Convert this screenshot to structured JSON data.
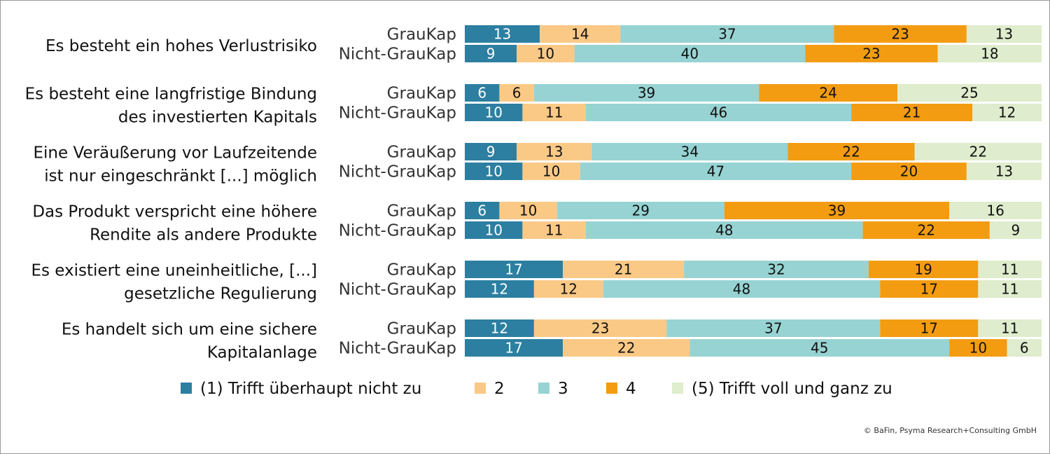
{
  "chart_data": {
    "type": "bar",
    "orientation": "horizontal",
    "stacked": true,
    "normalized_percent": true,
    "groups": [
      "GrauKap",
      "Nicht-GrauKap"
    ],
    "categories": [
      {
        "label_lines": [
          "Es besteht ein hohes Verlustrisiko"
        ],
        "rows": [
          {
            "group": "GrauKap",
            "values": [
              13,
              14,
              37,
              23,
              13
            ]
          },
          {
            "group": "Nicht-GrauKap",
            "values": [
              9,
              10,
              40,
              23,
              18
            ]
          }
        ]
      },
      {
        "label_lines": [
          "Es besteht eine langfristige Bindung",
          "des investierten Kapitals"
        ],
        "rows": [
          {
            "group": "GrauKap",
            "values": [
              6,
              6,
              39,
              24,
              25
            ]
          },
          {
            "group": "Nicht-GrauKap",
            "values": [
              10,
              11,
              46,
              21,
              12
            ]
          }
        ]
      },
      {
        "label_lines": [
          "Eine Veräußerung vor Laufzeitende",
          "ist nur eingeschränkt [...] möglich"
        ],
        "rows": [
          {
            "group": "GrauKap",
            "values": [
              9,
              13,
              34,
              22,
              22
            ]
          },
          {
            "group": "Nicht-GrauKap",
            "values": [
              10,
              10,
              47,
              20,
              13
            ]
          }
        ]
      },
      {
        "label_lines": [
          "Das Produkt verspricht eine höhere",
          "Rendite als andere Produkte"
        ],
        "rows": [
          {
            "group": "GrauKap",
            "values": [
              6,
              10,
              29,
              39,
              16
            ]
          },
          {
            "group": "Nicht-GrauKap",
            "values": [
              10,
              11,
              48,
              22,
              9
            ]
          }
        ]
      },
      {
        "label_lines": [
          "Es existiert eine uneinheitliche, [...]",
          "gesetzliche Regulierung"
        ],
        "rows": [
          {
            "group": "GrauKap",
            "values": [
              17,
              21,
              32,
              19,
              11
            ]
          },
          {
            "group": "Nicht-GrauKap",
            "values": [
              12,
              12,
              48,
              17,
              11
            ]
          }
        ]
      },
      {
        "label_lines": [
          "Es handelt sich um eine sichere",
          "Kapitalanlage"
        ],
        "rows": [
          {
            "group": "GrauKap",
            "values": [
              12,
              23,
              37,
              17,
              11
            ]
          },
          {
            "group": "Nicht-GrauKap",
            "values": [
              17,
              22,
              45,
              10,
              6
            ]
          }
        ]
      }
    ],
    "series": [
      {
        "name": "(1) Trifft überhaupt nicht zu",
        "color": "#2c7fa1"
      },
      {
        "name": "2",
        "color": "#fac986"
      },
      {
        "name": "3",
        "color": "#97d3d3"
      },
      {
        "name": "4",
        "color": "#f39c12"
      },
      {
        "name": "(5) Trifft voll und ganz zu",
        "color": "#dfeccd"
      }
    ],
    "legend_position": "bottom",
    "grid": false
  },
  "copyright": "© BaFin, Psyma Research+Consulting GmbH"
}
